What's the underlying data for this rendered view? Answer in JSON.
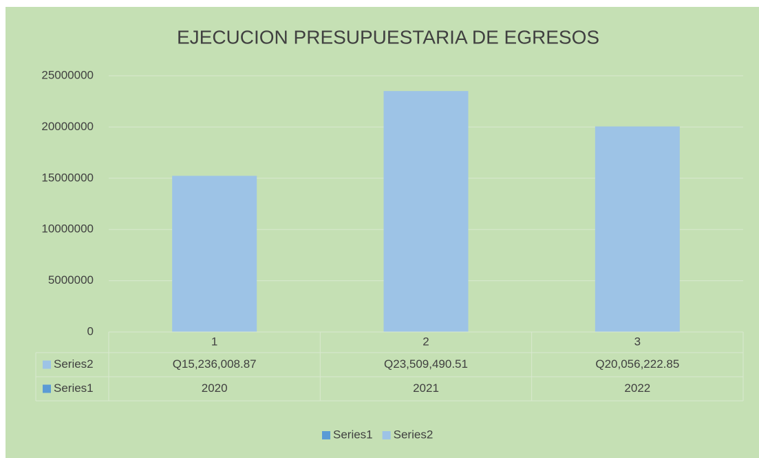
{
  "chart_data": {
    "type": "bar",
    "title": "EJECUCION PRESUPUESTARIA DE EGRESOS",
    "categories": [
      "1",
      "2",
      "3"
    ],
    "series": [
      {
        "name": "Series1",
        "color": "#5b9bd5",
        "values": [
          2020,
          2021,
          2022
        ]
      },
      {
        "name": "Series2",
        "color": "#9dc3e6",
        "values": [
          15236008.87,
          23509490.51,
          20056222.85
        ],
        "value_labels": [
          "Q15,236,008.87",
          "Q23,509,490.51",
          "Q20,056,222.85"
        ]
      }
    ],
    "ylim": [
      0,
      25000000
    ],
    "yticks": [
      0,
      5000000,
      10000000,
      15000000,
      20000000,
      25000000
    ],
    "grid": true,
    "legend": "bottom"
  }
}
